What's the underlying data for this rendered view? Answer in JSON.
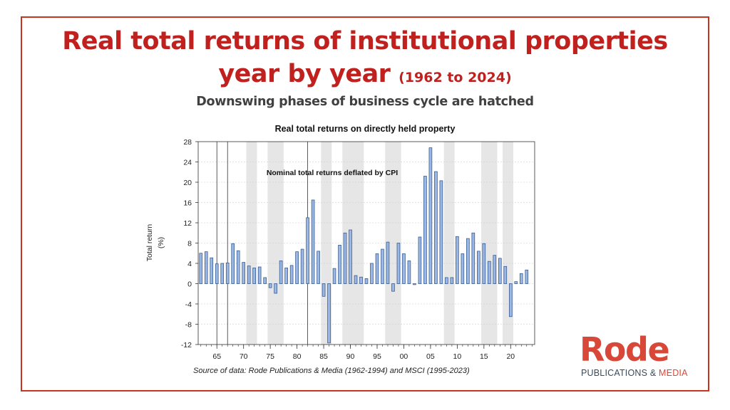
{
  "header": {
    "title_line1": "Real total returns of institutional properties",
    "title_line2": "year by year",
    "title_years": "(1962 to 2024)",
    "subtitle": "Downswing phases of business cycle are hatched"
  },
  "source": "Source of data: Rode Publications & Media (1962-1994) and MSCI (1995-2023)",
  "logo": {
    "word": "Rode",
    "sub_main": "PUBLICATIONS & ",
    "sub_accent": "MEDIA"
  },
  "colors": {
    "frame": "#c8341f",
    "title": "#c0201e",
    "bar_fill": "#9ab8e3",
    "bar_stroke": "#2c4f86",
    "shade": "#e6e6e6",
    "logo": "#d84838"
  },
  "chart_data": {
    "type": "bar",
    "title": "Real total returns on directly held property",
    "annotation": "Nominal total returns deflated by CPI",
    "ylabel_line1": "Total return",
    "ylabel_line2": "(%)",
    "ylim": [
      -12,
      28
    ],
    "yticks": [
      28,
      24,
      20,
      16,
      12,
      8,
      4,
      0,
      -4,
      -8,
      -12
    ],
    "ytick_labels": [
      "28",
      "24",
      "20",
      "16",
      "12",
      "8",
      "4",
      "0",
      "-4",
      "-8",
      "-12"
    ],
    "xlim": [
      1961.5,
      2024.5
    ],
    "xticks": [
      1965,
      1970,
      1975,
      1980,
      1985,
      1990,
      1995,
      2000,
      2005,
      2010,
      2015,
      2020
    ],
    "xtick_labels": [
      "65",
      "70",
      "75",
      "80",
      "85",
      "90",
      "95",
      "00",
      "05",
      "10",
      "15",
      "20"
    ],
    "grid": true,
    "years": [
      1962,
      1963,
      1964,
      1965,
      1966,
      1967,
      1968,
      1969,
      1970,
      1971,
      1972,
      1973,
      1974,
      1975,
      1976,
      1977,
      1978,
      1979,
      1980,
      1981,
      1982,
      1983,
      1984,
      1985,
      1986,
      1987,
      1988,
      1989,
      1990,
      1991,
      1992,
      1993,
      1994,
      1995,
      1996,
      1997,
      1998,
      1999,
      2000,
      2001,
      2002,
      2003,
      2004,
      2005,
      2006,
      2007,
      2008,
      2009,
      2010,
      2011,
      2012,
      2013,
      2014,
      2015,
      2016,
      2017,
      2018,
      2019,
      2020,
      2021,
      2022,
      2023
    ],
    "values": [
      6.0,
      6.3,
      5.1,
      3.9,
      4.0,
      4.1,
      7.9,
      6.5,
      4.2,
      3.5,
      3.1,
      3.3,
      1.2,
      -0.8,
      -1.9,
      4.5,
      3.1,
      3.6,
      6.3,
      6.8,
      13.0,
      16.5,
      6.4,
      -2.5,
      -11.7,
      3.0,
      7.6,
      10.0,
      10.6,
      1.6,
      1.3,
      1.0,
      4.0,
      5.9,
      6.8,
      8.2,
      -1.5,
      8.0,
      5.9,
      4.5,
      -0.2,
      9.2,
      21.2,
      26.8,
      22.1,
      20.3,
      1.2,
      1.2,
      9.3,
      5.9,
      8.9,
      10.0,
      6.4,
      7.9,
      4.4,
      5.6,
      5.0,
      3.4,
      -6.5,
      0.4,
      2.0,
      2.7
    ],
    "shaded_periods": [
      [
        1971,
        1972
      ],
      [
        1975,
        1977
      ],
      [
        1985,
        1986
      ],
      [
        1989,
        1992
      ],
      [
        1997,
        1999
      ],
      [
        2008,
        2009
      ],
      [
        2015,
        2017
      ],
      [
        2019,
        2020
      ]
    ],
    "vertical_lines": [
      1965,
      1967,
      1982
    ]
  }
}
